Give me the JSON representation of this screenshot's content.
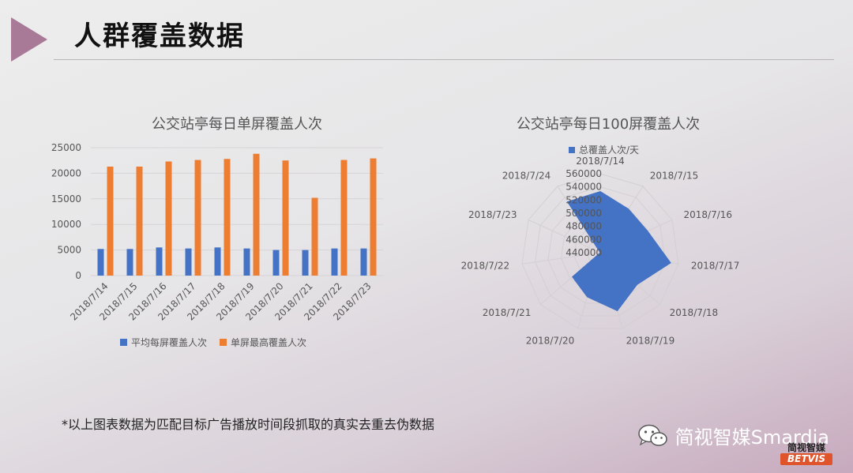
{
  "slide": {
    "title": "人群覆盖数据",
    "footnote": "*以上图表数据为匹配目标广告播放时间段抓取的真实去重去伪数据",
    "brand_text": "简视智媒Smardia",
    "brand_logo_cn": "简视智媒",
    "brand_logo_en": "BETVIS"
  },
  "chart_data": [
    {
      "type": "bar",
      "title": "公交站亭每日单屏覆盖人次",
      "categories": [
        "2018/7/14",
        "2018/7/15",
        "2018/7/16",
        "2018/7/17",
        "2018/7/18",
        "2018/7/19",
        "2018/7/20",
        "2018/7/21",
        "2018/7/22",
        "2018/7/23"
      ],
      "series": [
        {
          "name": "平均每屏覆盖人次",
          "color": "#4472c4",
          "values": [
            5200,
            5200,
            5500,
            5300,
            5500,
            5300,
            5000,
            5000,
            5300,
            5300
          ]
        },
        {
          "name": "单屏最高覆盖人次",
          "color": "#ed7d31",
          "values": [
            21300,
            21300,
            22300,
            22600,
            22800,
            23800,
            22500,
            15200,
            22600,
            22900
          ]
        }
      ],
      "yticks": [
        0,
        5000,
        10000,
        15000,
        20000,
        25000
      ],
      "ylim": [
        0,
        25000
      ],
      "grid": true,
      "legend": "bottom"
    },
    {
      "type": "radar",
      "title": "公交站亭每日100屏覆盖人次",
      "categories": [
        "2018/7/14",
        "2018/7/15",
        "2018/7/16",
        "2018/7/17",
        "2018/7/18",
        "2018/7/19",
        "2018/7/20",
        "2018/7/21",
        "2018/7/22",
        "2018/7/23",
        "2018/7/24"
      ],
      "series": [
        {
          "name": "总覆盖人次/天",
          "color": "#4472c4",
          "values": [
            533000,
            519000,
            519000,
            548000,
            514000,
            532000,
            510000,
            496000,
            440000,
            440000,
            532000
          ]
        }
      ],
      "rticks": [
        440000,
        460000,
        480000,
        500000,
        520000,
        540000,
        560000
      ],
      "rlim": [
        440000,
        560000
      ],
      "legend": "top"
    }
  ]
}
